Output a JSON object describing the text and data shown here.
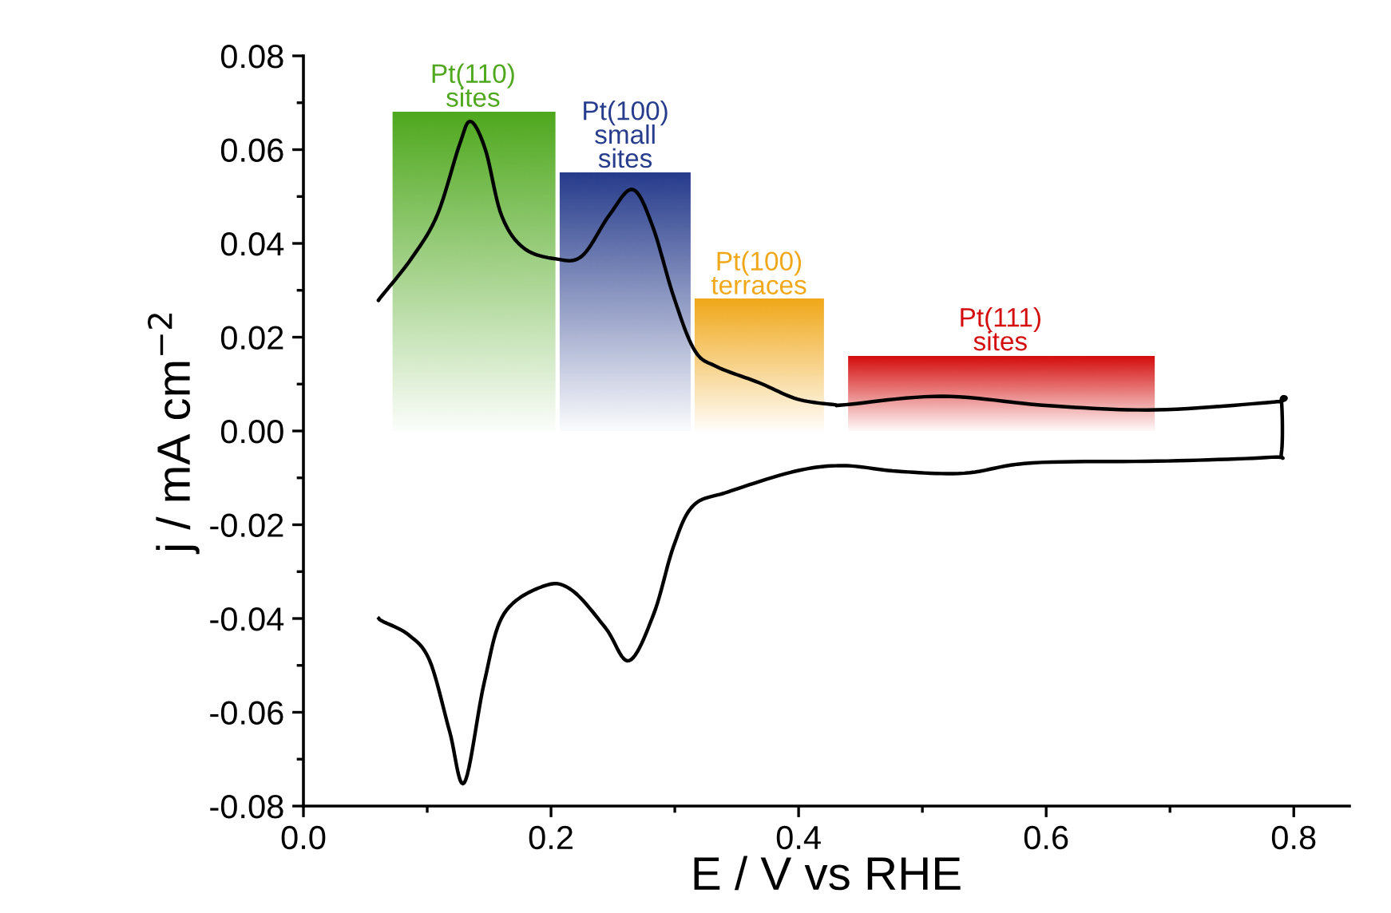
{
  "chart_data": {
    "type": "line",
    "xlabel": "E / V vs RHE",
    "ylabel": "j / mA cm$^{−2}$",
    "xlim": [
      0.0,
      0.845
    ],
    "ylim": [
      -0.08,
      0.08
    ],
    "xticks": [
      {
        "value": 0,
        "label": "0.0"
      },
      {
        "value": 0.1,
        "label": null
      },
      0.2,
      {
        "value": 0.3,
        "label": null
      },
      0.4,
      {
        "value": 0.5,
        "label": null
      },
      0.6,
      {
        "value": 0.7,
        "label": null
      },
      0.8
    ],
    "yticks": [
      {
        "value": -0.08,
        "label": "-0.08"
      },
      {
        "value": -0.07,
        "label": null
      },
      {
        "value": -0.06,
        "label": "-0.06"
      },
      {
        "value": -0.05,
        "label": null
      },
      {
        "value": -0.04,
        "label": "-0.04"
      },
      {
        "value": -0.03,
        "label": null
      },
      {
        "value": -0.02,
        "label": "-0.02"
      },
      {
        "value": -0.01,
        "label": null
      },
      {
        "value": 0.0,
        "label": "0.00"
      },
      {
        "value": 0.01,
        "label": null
      },
      {
        "value": 0.02,
        "label": "0.02"
      },
      {
        "value": 0.03,
        "label": null
      },
      {
        "value": 0.04,
        "label": "0.04"
      },
      {
        "value": 0.05,
        "label": null
      },
      {
        "value": 0.06,
        "label": "0.06"
      },
      {
        "value": 0.07,
        "label": null
      },
      {
        "value": 0.08,
        "label": "0.08"
      }
    ],
    "grid": false,
    "legend": false,
    "marker": "none",
    "line_style": "solid",
    "series": [
      {
        "color": "#000000",
        "x": [
          0.061,
          0.063,
          0.087,
          0.108,
          0.126,
          0.135,
          0.147,
          0.16,
          0.178,
          0.204,
          0.225,
          0.247,
          0.266,
          0.282,
          0.299,
          0.316,
          0.334,
          0.368,
          0.399,
          0.429,
          0.438,
          0.516,
          0.602,
          0.689,
          0.785,
          0.79,
          0.79,
          0.782,
          0.698,
          0.589,
          0.534,
          0.48,
          0.436,
          0.397,
          0.343,
          0.315,
          0.299,
          0.283,
          0.263,
          0.244,
          0.217,
          0.195,
          0.162,
          0.146,
          0.13,
          0.118,
          0.102,
          0.085,
          0.064,
          0.061
        ],
        "values": [
          0.028,
          0.0287,
          0.0367,
          0.046,
          0.061,
          0.066,
          0.06,
          0.046,
          0.039,
          0.0367,
          0.0373,
          0.046,
          0.0515,
          0.0437,
          0.0287,
          0.0172,
          0.0137,
          0.0103,
          0.0068,
          0.0056,
          0.0056,
          0.0074,
          0.0054,
          0.0045,
          0.0062,
          0.0065,
          -0.0047,
          -0.0056,
          -0.0064,
          -0.0068,
          -0.009,
          -0.0086,
          -0.0074,
          -0.0086,
          -0.013,
          -0.0159,
          -0.0246,
          -0.039,
          -0.049,
          -0.042,
          -0.034,
          -0.033,
          -0.039,
          -0.0537,
          -0.075,
          -0.064,
          -0.049,
          -0.0435,
          -0.0406,
          -0.04
        ]
      }
    ],
    "bands": [
      {
        "axis": "x",
        "from": 0.072,
        "to": 0.203,
        "color": "#4fa81e"
      },
      {
        "axis": "x",
        "from": 0.207,
        "to": 0.312,
        "color": "#273c8c"
      },
      {
        "axis": "x",
        "from": 0.316,
        "to": 0.42,
        "color": "#f0a81a"
      },
      {
        "axis": "x",
        "from": 0.44,
        "to": 0.687,
        "color": "#d40d0d"
      }
    ],
    "annotations": [
      {
        "text": "Pt(110)\nsites",
        "x": 0.137,
        "y": 0.068
      },
      {
        "text": "Pt(100)\nsmall\nsites",
        "x": 0.26,
        "y": 0.055
      },
      {
        "text": "Pt(100)\nterraces",
        "x": 0.368,
        "y": 0.028
      },
      {
        "text": "Pt(111)\nsites",
        "x": 0.563,
        "y": 0.016
      }
    ]
  }
}
